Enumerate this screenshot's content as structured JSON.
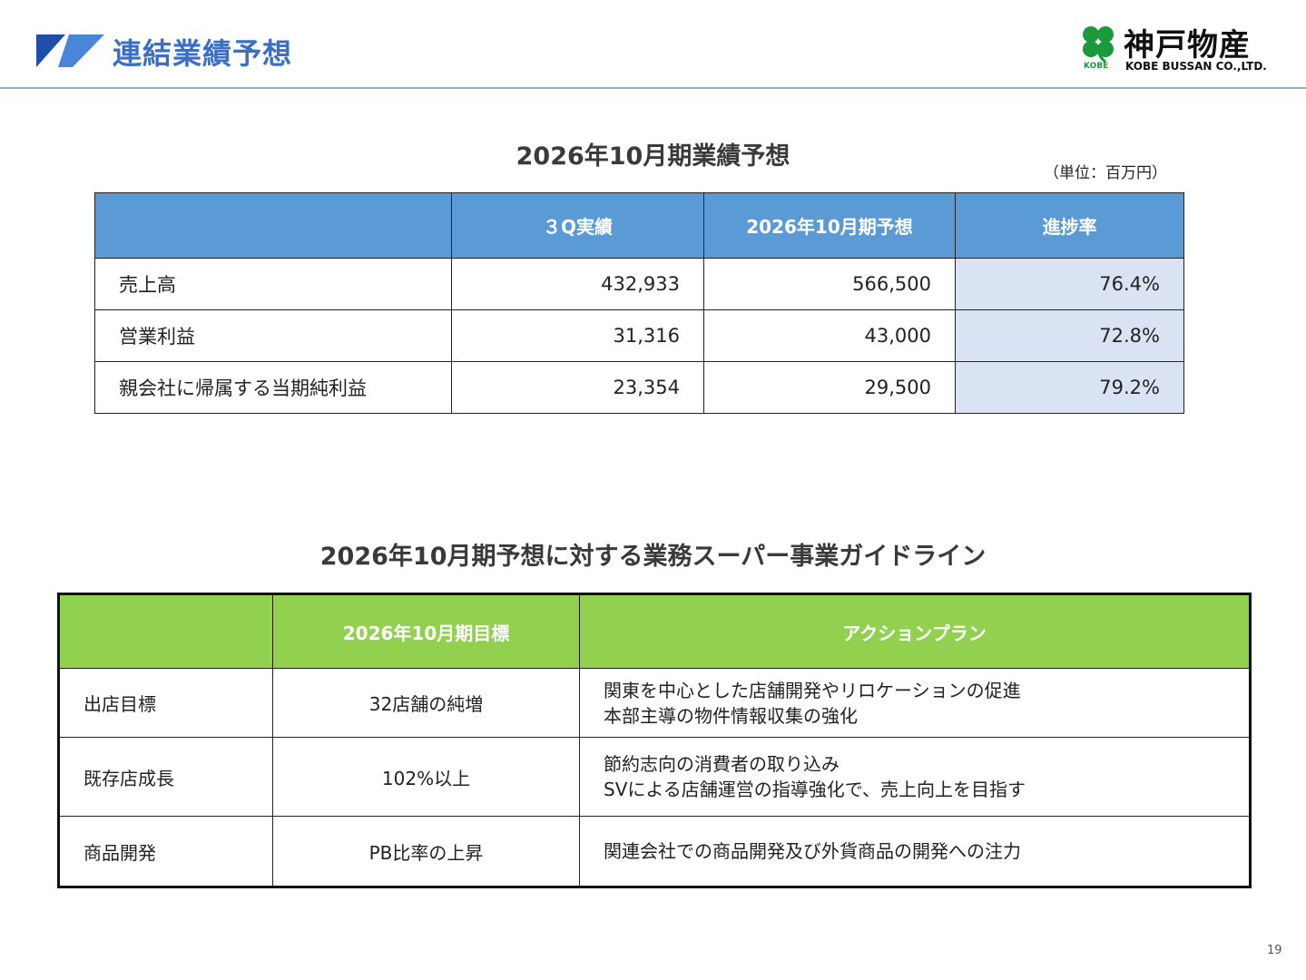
{
  "header": {
    "title": "連結業績予想",
    "logo": {
      "jp": "神戸物産",
      "en": "KOBE BUSSAN CO.,LTD.",
      "mark_text": "KOBE"
    },
    "accent_color": "#3a6fc4"
  },
  "forecast": {
    "title": "2026年10月期業績予想",
    "unit": "（単位：百万円）",
    "columns": [
      "",
      "３Q実績",
      "2026年10月期予想",
      "進捗率"
    ],
    "rows": [
      {
        "label": "売上高",
        "actual": "432,933",
        "forecast": "566,500",
        "rate": "76.4%"
      },
      {
        "label": "営業利益",
        "actual": "31,316",
        "forecast": "43,000",
        "rate": "72.8%"
      },
      {
        "label": "親会社に帰属する当期純利益",
        "actual": "23,354",
        "forecast": "29,500",
        "rate": "79.2%"
      }
    ],
    "header_color": "#5b9bd5",
    "rate_color": "#dae3f3"
  },
  "guideline": {
    "title": "2026年10月期予想に対する業務スーパー事業ガイドライン",
    "columns": [
      "",
      "2026年10月期目標",
      "アクションプラン"
    ],
    "rows": [
      {
        "label": "出店目標",
        "target": "32店舗の純増",
        "plan": [
          "関東を中心とした店舗開発やリロケーションの促進",
          "本部主導の物件情報収集の強化"
        ]
      },
      {
        "label": "既存店成長",
        "target": "102%以上",
        "plan": [
          "節約志向の消費者の取り込み",
          "SVによる店舗運営の指導強化で、売上向上を目指す"
        ]
      },
      {
        "label": "商品開発",
        "target": "PB比率の上昇",
        "plan": [
          "関連会社での商品開発及び外貨商品の開発への注力"
        ]
      }
    ],
    "header_color": "#92d050"
  },
  "page_number": "19"
}
